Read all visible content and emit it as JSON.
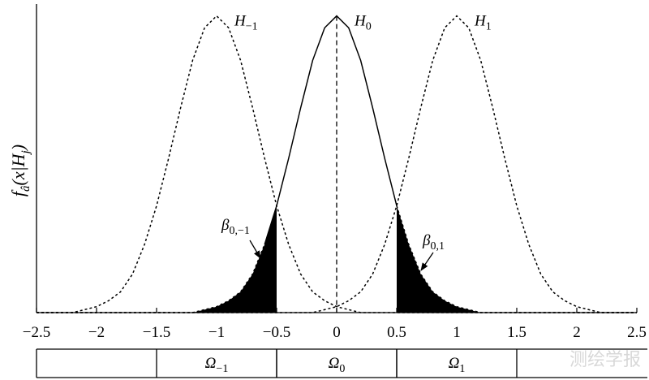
{
  "chart_data": {
    "type": "line",
    "xlim": [
      -2.5,
      2.5
    ],
    "ylim": [
      0,
      1.04
    ],
    "xticks": [
      {
        "value": -2.5,
        "label": "−2.5"
      },
      {
        "value": -2,
        "label": "−2"
      },
      {
        "value": -1.5,
        "label": "−1.5"
      },
      {
        "value": -1,
        "label": "−1"
      },
      {
        "value": -0.5,
        "label": "−0.5"
      },
      0,
      0.5,
      1,
      1.5,
      2,
      2.5
    ],
    "ylabel": [
      {
        "text": "f"
      },
      {
        "text": "â",
        "sub": true
      },
      {
        "text": "(x|H"
      },
      {
        "text": "j",
        "sub": true
      },
      {
        "text": ")"
      }
    ],
    "x": [
      -2.5,
      -2.4,
      -2.3,
      -2.2,
      -2.1,
      -2,
      -1.9,
      -1.8,
      -1.7,
      -1.6,
      -1.5,
      -1.4,
      -1.3,
      -1.2,
      -1.1,
      -1,
      -0.9,
      -0.8,
      -0.7,
      -0.6,
      -0.5,
      -0.4,
      -0.3,
      -0.2,
      -0.1,
      0,
      0.1,
      0.2,
      0.3,
      0.4,
      0.5,
      0.6,
      0.7,
      0.8,
      0.9,
      1,
      1.1,
      1.2,
      1.3,
      1.4,
      1.5,
      1.6,
      1.7,
      1.8,
      1.9,
      2,
      2.1,
      2.2,
      2.3,
      2.4,
      2.5
    ],
    "series": [
      {
        "name": "H",
        "name_sub": "0",
        "color": "#000",
        "dashed": true,
        "solid_xlim": [
          -0.5,
          0.5
        ],
        "values": [
          0,
          0,
          0,
          0,
          0,
          0,
          0,
          0,
          0,
          0,
          0,
          0,
          0,
          0,
          0.01,
          0.02,
          0.04,
          0.07,
          0.13,
          0.23,
          0.36,
          0.52,
          0.69,
          0.85,
          0.96,
          1,
          0.96,
          0.85,
          0.69,
          0.52,
          0.36,
          0.23,
          0.13,
          0.07,
          0.04,
          0.02,
          0.01,
          0,
          0,
          0,
          0,
          0,
          0,
          0,
          0,
          0,
          0,
          0,
          0,
          0,
          0
        ]
      },
      {
        "name": "H",
        "name_sub": "−1",
        "color": "#000",
        "dashed": true,
        "values": [
          0,
          0,
          0,
          0,
          0.01,
          0.02,
          0.04,
          0.07,
          0.13,
          0.23,
          0.36,
          0.52,
          0.69,
          0.85,
          0.96,
          1,
          0.96,
          0.85,
          0.69,
          0.52,
          0.36,
          0.23,
          0.13,
          0.07,
          0.04,
          0.02,
          0.01,
          0,
          0,
          0,
          0,
          0,
          0,
          0,
          0,
          0,
          0,
          0,
          0,
          0,
          0,
          0,
          0,
          0,
          0,
          0,
          0,
          0,
          0,
          0,
          0
        ]
      },
      {
        "name": "H",
        "name_sub": "1",
        "color": "#000",
        "dashed": true,
        "values": [
          0,
          0,
          0,
          0,
          0,
          0,
          0,
          0,
          0,
          0,
          0,
          0,
          0,
          0,
          0,
          0,
          0,
          0,
          0,
          0,
          0,
          0,
          0,
          0,
          0.01,
          0.02,
          0.04,
          0.07,
          0.13,
          0.23,
          0.36,
          0.52,
          0.69,
          0.85,
          0.96,
          1,
          0.96,
          0.85,
          0.69,
          0.52,
          0.36,
          0.23,
          0.13,
          0.07,
          0.04,
          0.02,
          0.01,
          0,
          0,
          0,
          0
        ]
      }
    ],
    "shaded": [
      {
        "series": 0,
        "xlim": [
          -2.5,
          -0.5
        ],
        "color": "#000",
        "text": "β",
        "sub": "0,−1"
      },
      {
        "series": 0,
        "xlim": [
          0.5,
          2.5
        ],
        "color": "#000",
        "text": "β",
        "sub": "0,1"
      }
    ],
    "regions": [
      {
        "xlim": [
          -1.5,
          -0.5
        ],
        "text": "Ω",
        "sub": "−1"
      },
      {
        "xlim": [
          -0.5,
          0.5
        ],
        "text": "Ω",
        "sub": "0"
      },
      {
        "xlim": [
          0.5,
          1.5
        ],
        "text": "Ω",
        "sub": "1"
      }
    ],
    "watermark": "测绘学报"
  }
}
